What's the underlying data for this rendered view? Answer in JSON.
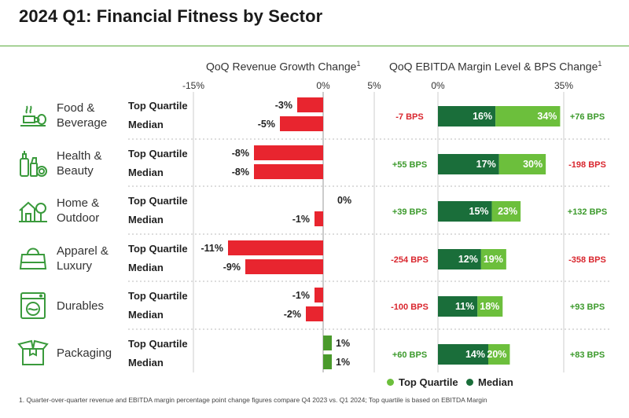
{
  "title": "2024 Q1: Financial Fitness by Sector",
  "colors": {
    "accent": "#5aaa3c",
    "negative": "#e8252f",
    "positive": "#4a9a2c",
    "median": "#1a6e3a",
    "top_quartile": "#6cbf3c",
    "bps_negative": "#d9262e",
    "bps_positive": "#3c9a2c"
  },
  "headers": {
    "revenue": "QoQ Revenue Growth Change",
    "revenue_sup": "1",
    "ebitda": "QoQ EBITDA Margin Level & BPS Change",
    "ebitda_sup": "1"
  },
  "ticks": {
    "rev_min": "-15%",
    "rev_zero": "0%",
    "rev_max": "5%",
    "eb_min": "0%",
    "eb_max": "35%"
  },
  "row_labels": {
    "top": "Top Quartile",
    "median": "Median"
  },
  "sectors": [
    {
      "name": "Food &\nBeverage",
      "icon": "food-beverage-icon"
    },
    {
      "name": "Health &\nBeauty",
      "icon": "health-beauty-icon"
    },
    {
      "name": "Home &\nOutdoor",
      "icon": "home-outdoor-icon"
    },
    {
      "name": "Apparel &\nLuxury",
      "icon": "apparel-luxury-icon"
    },
    {
      "name": "Durables",
      "icon": "durables-icon"
    },
    {
      "name": "Packaging",
      "icon": "packaging-icon"
    }
  ],
  "chart_data": [
    {
      "type": "bar",
      "orientation": "horizontal",
      "title": "QoQ Revenue Growth Change",
      "xlim": [
        -15,
        5
      ],
      "categories": [
        "Food & Beverage",
        "Health & Beauty",
        "Home & Outdoor",
        "Apparel & Luxury",
        "Durables",
        "Packaging"
      ],
      "series": [
        {
          "name": "Top Quartile",
          "values": [
            -3,
            -8,
            0,
            -11,
            -1,
            1
          ],
          "labels": [
            "-3%",
            "-8%",
            "0%",
            "-11%",
            "-1%",
            "1%"
          ]
        },
        {
          "name": "Median",
          "values": [
            -5,
            -8,
            -1,
            -9,
            -2,
            1
          ],
          "labels": [
            "-5%",
            "-8%",
            "-1%",
            "-9%",
            "-2%",
            "1%"
          ]
        }
      ]
    },
    {
      "type": "bar",
      "orientation": "horizontal",
      "title": "QoQ EBITDA Margin Level & BPS Change",
      "xlim": [
        0,
        35
      ],
      "categories": [
        "Food & Beverage",
        "Health & Beauty",
        "Home & Outdoor",
        "Apparel & Luxury",
        "Durables",
        "Packaging"
      ],
      "series": [
        {
          "name": "Median",
          "values": [
            16,
            17,
            15,
            12,
            11,
            14
          ],
          "labels": [
            "16%",
            "17%",
            "15%",
            "12%",
            "11%",
            "14%"
          ],
          "bps_change": [
            -7,
            55,
            39,
            -254,
            -100,
            60
          ],
          "bps_labels": [
            "-7 BPS",
            "+55 BPS",
            "+39 BPS",
            "-254 BPS",
            "-100 BPS",
            "+60 BPS"
          ]
        },
        {
          "name": "Top Quartile",
          "values": [
            34,
            30,
            23,
            19,
            18,
            20
          ],
          "labels": [
            "34%",
            "30%",
            "23%",
            "19%",
            "18%",
            "20%"
          ],
          "bps_change": [
            76,
            -198,
            132,
            -358,
            93,
            83
          ],
          "bps_labels": [
            "+76 BPS",
            "-198 BPS",
            "+132 BPS",
            "-358 BPS",
            "+93 BPS",
            "+83 BPS"
          ]
        }
      ],
      "legend": [
        "Top Quartile",
        "Median"
      ]
    }
  ],
  "legend": {
    "top": "Top Quartile",
    "median": "Median"
  },
  "footnote": "1. Quarter-over-quarter revenue and EBITDA margin percentage point change figures compare Q4 2023 vs. Q1 2024; Top quartile is based on EBITDA Margin"
}
